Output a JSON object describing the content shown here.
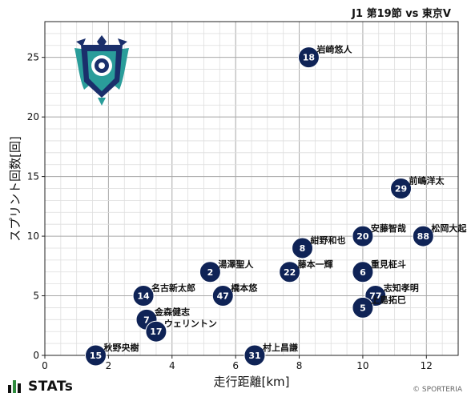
{
  "header": {
    "match_title": "J1 第19節 vs 東京V"
  },
  "footer": {
    "brand": "STATs",
    "copyright": "© SPORTERIA"
  },
  "team_logo": {
    "name": "Avispa Fukuoka emblem",
    "colors": [
      "#1a2f6b",
      "#2a9d9a",
      "#ffffff"
    ]
  },
  "chart_data": {
    "type": "scatter",
    "xlabel": "走行距離[km]",
    "ylabel": "スプリント回数[回]",
    "xlim": [
      0,
      13
    ],
    "ylim": [
      0,
      28
    ],
    "xticks": [
      0,
      2,
      4,
      6,
      8,
      10,
      12
    ],
    "yticks": [
      0,
      5,
      10,
      15,
      20,
      25
    ],
    "grid": true,
    "marker_color": "#0f2356",
    "points": [
      {
        "number": "18",
        "name": "岩崎悠人",
        "x": 8.3,
        "y": 25
      },
      {
        "number": "29",
        "name": "前嶋洋太",
        "x": 11.2,
        "y": 14
      },
      {
        "number": "20",
        "name": "安藤智哉",
        "x": 10.0,
        "y": 10
      },
      {
        "number": "88",
        "name": "松岡大起",
        "x": 11.9,
        "y": 10
      },
      {
        "number": "8",
        "name": "紺野和也",
        "x": 8.1,
        "y": 9
      },
      {
        "number": "22",
        "name": "藤本一輝",
        "x": 7.7,
        "y": 7
      },
      {
        "number": "6",
        "name": "重見柾斗",
        "x": 10.0,
        "y": 7
      },
      {
        "number": "2",
        "name": "湯澤聖人",
        "x": 5.2,
        "y": 7
      },
      {
        "number": "14",
        "name": "名古新太郎",
        "x": 3.1,
        "y": 5
      },
      {
        "number": "47",
        "name": "橋本悠",
        "x": 5.6,
        "y": 5
      },
      {
        "number": "77",
        "name": "志知孝明",
        "x": 10.4,
        "y": 5
      },
      {
        "number": "5",
        "name": "上島拓巳",
        "x": 10.0,
        "y": 4
      },
      {
        "number": "7",
        "name": "金森健志",
        "x": 3.2,
        "y": 3
      },
      {
        "number": "17",
        "name": "ウェリントン",
        "x": 3.5,
        "y": 2
      },
      {
        "number": "15",
        "name": "秋野央樹",
        "x": 1.6,
        "y": 0
      },
      {
        "number": "31",
        "name": "村上昌謙",
        "x": 6.6,
        "y": 0
      }
    ]
  }
}
